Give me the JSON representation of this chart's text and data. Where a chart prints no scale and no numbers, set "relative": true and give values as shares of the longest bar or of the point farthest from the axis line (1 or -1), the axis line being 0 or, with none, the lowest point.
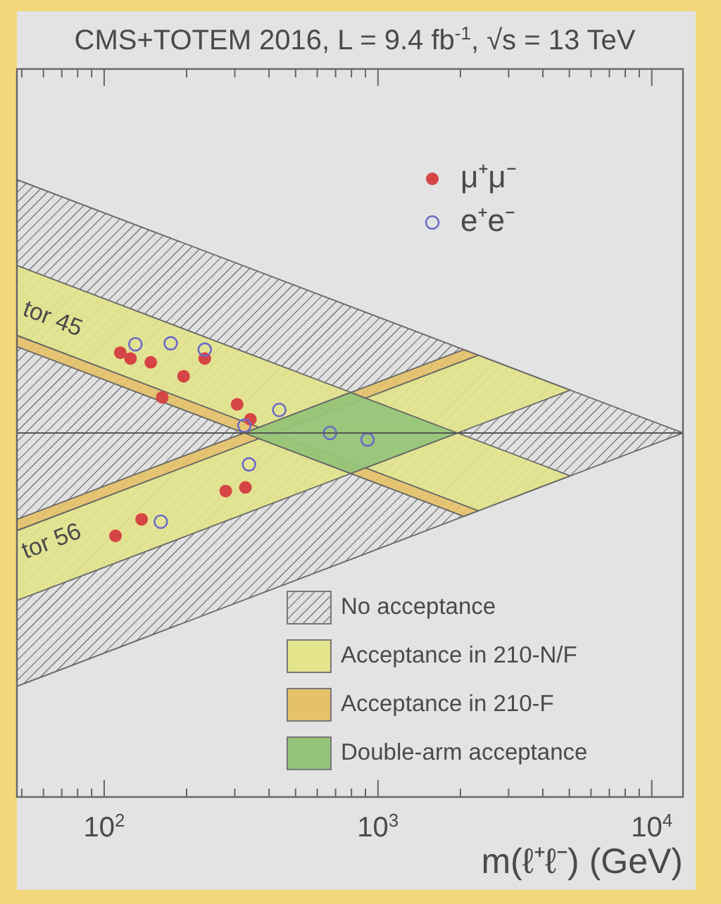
{
  "chart_data": {
    "type": "scatter",
    "title": "CMS+TOTEM 2016, L = 9.4 fb$^{-1}$, √s = 13 TeV",
    "xlabel": "m(ℓ⁺ℓ⁻) (GeV)",
    "log": "x",
    "relative": true,
    "legend": "right",
    "xlim": [
      48,
      13000
    ],
    "xticks": [
      {
        "value": 100,
        "label": "10$^{2}$"
      },
      {
        "value": 1000,
        "label": "10$^{3}$"
      },
      {
        "value": 10000,
        "label": "10$^{4}$"
      }
    ],
    "annotations": [
      "tor 45",
      "tor 56"
    ],
    "series": [
      {
        "type": "area",
        "name": "No acceptance",
        "color": "#5a5a5a",
        "x": [
          48,
          13000,
          48
        ],
        "values": [
          1,
          0,
          -1
        ]
      },
      {
        "type": "area",
        "name": "Acceptance in 210-N/F",
        "color": "#e3e48c",
        "x": [
          48,
          5035,
          2325,
          48
        ],
        "values": [
          0.661,
          -0.169,
          -0.307,
          0.385
        ]
      },
      {
        "type": "area",
        "color": "#e3e48c",
        "x": [
          48,
          5035,
          2325,
          48
        ],
        "values": [
          -0.661,
          0.169,
          0.307,
          -0.385
        ]
      },
      {
        "type": "area",
        "name": "Acceptance in 210-F",
        "color": "#e5c26a",
        "x": [
          48,
          2325,
          2055,
          48
        ],
        "values": [
          0.385,
          -0.307,
          -0.329,
          0.341
        ]
      },
      {
        "type": "area",
        "color": "#e5c26a",
        "x": [
          48,
          2325,
          2055,
          48
        ],
        "values": [
          -0.385,
          0.307,
          0.329,
          -0.341
        ]
      },
      {
        "type": "area",
        "name": "Double-arm acceptance",
        "color": "#94c47a",
        "x": [
          325,
          795,
          1950,
          795
        ],
        "values": [
          0,
          0.16,
          0,
          -0.16
        ]
      },
      {
        "name": "μ⁺μ⁻",
        "color": "#d64545",
        "marker": "circle",
        "x": [
          114.5,
          124.8,
          148,
          195,
          163,
          233,
          306,
          342,
          278,
          328,
          137,
          110
        ],
        "values": [
          0.317,
          0.294,
          0.279,
          0.224,
          0.141,
          0.294,
          0.113,
          0.054,
          -0.229,
          -0.215,
          -0.341,
          -0.406
        ]
      },
      {
        "name": "e⁺e⁻",
        "color": "#6a6ac8",
        "marker": "circle",
        "x": [
          130,
          175,
          233,
          436,
          325,
          338,
          161,
          668,
          916
        ],
        "values": [
          0.35,
          0.354,
          0.329,
          0.091,
          0.029,
          -0.124,
          -0.35,
          0,
          -0.026
        ]
      }
    ]
  }
}
